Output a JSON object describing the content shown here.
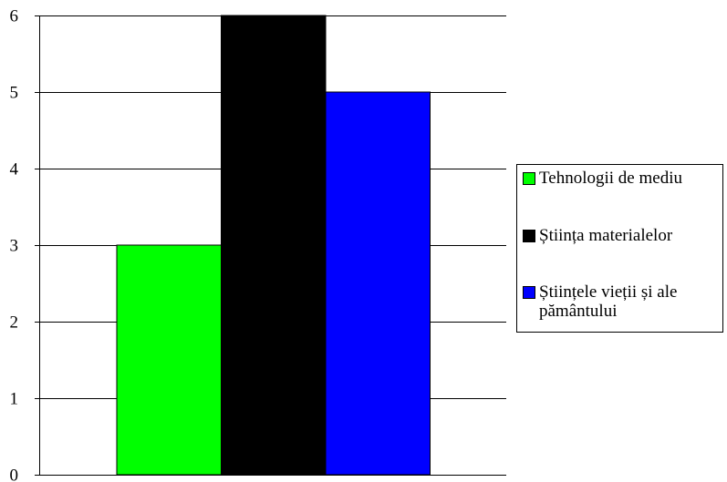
{
  "chart_data": {
    "type": "bar",
    "categories": [
      ""
    ],
    "series": [
      {
        "name": "Tehnologii de mediu",
        "values": [
          3
        ],
        "color": "#00ff00"
      },
      {
        "name": "Știința materialelor",
        "values": [
          6
        ],
        "color": "#000000"
      },
      {
        "name": "Științele vieții și ale pământului",
        "values": [
          5
        ],
        "color": "#0000ff"
      }
    ],
    "y_ticks": [
      "0",
      "1",
      "2",
      "3",
      "4",
      "5",
      "6"
    ],
    "ylim": [
      0,
      6
    ],
    "grid": true,
    "legend_position": "right"
  }
}
